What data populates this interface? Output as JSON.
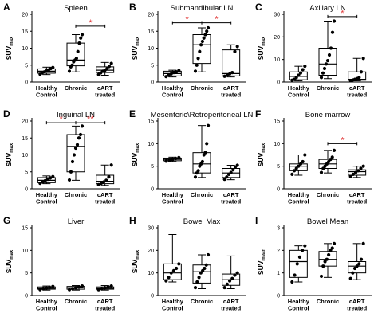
{
  "colors": {
    "significance": "#e23b3b",
    "axis": "#000000",
    "box": "#000000",
    "point_fill": "#000000"
  },
  "chart_data": [
    {
      "type": "box",
      "letter": "A",
      "title": "Spleen",
      "ylabel_main": "SUV",
      "ylabel_sub": "max",
      "ylim": [
        0,
        20
      ],
      "yticks": [
        "0",
        "5",
        "10",
        "15",
        "20"
      ],
      "categories": [
        [
          "Healthy",
          "Control"
        ],
        [
          "Chronic"
        ],
        [
          "cART",
          "treated"
        ]
      ],
      "groups": [
        {
          "min": 2.2,
          "q1": 2.6,
          "median": 3.2,
          "q3": 3.9,
          "max": 4.4,
          "points": [
            2.3,
            2.7,
            3.0,
            3.3,
            3.6,
            4.0,
            4.3
          ]
        },
        {
          "min": 3.0,
          "q1": 4.8,
          "median": 6.5,
          "q3": 11.5,
          "max": 14.0,
          "points": [
            3.2,
            4.5,
            5.0,
            6.0,
            6.5,
            7.0,
            9.0,
            11.5,
            13.0,
            14.0
          ]
        },
        {
          "min": 2.0,
          "q1": 2.8,
          "median": 3.5,
          "q3": 4.5,
          "max": 5.8,
          "points": [
            2.2,
            2.7,
            3.2,
            3.5,
            4.0,
            4.6,
            5.5
          ]
        }
      ],
      "brackets": [
        {
          "from": 1,
          "to": 2,
          "y": 16.5,
          "label": "*"
        }
      ]
    },
    {
      "type": "box",
      "letter": "B",
      "title": "Submandibular LN",
      "ylabel_main": "SUV",
      "ylabel_sub": "max",
      "ylim": [
        0,
        20
      ],
      "yticks": [
        "0",
        "5",
        "10",
        "15",
        "20"
      ],
      "categories": [
        [
          "Healthy",
          "Control"
        ],
        [
          "Chronic"
        ],
        [
          "cART",
          "treated"
        ]
      ],
      "groups": [
        {
          "min": 1.5,
          "q1": 1.8,
          "median": 2.5,
          "q3": 3.2,
          "max": 3.5,
          "points": [
            1.6,
            2.0,
            2.4,
            2.8,
            3.0,
            3.4
          ]
        },
        {
          "min": 3.0,
          "q1": 5.5,
          "median": 11.0,
          "q3": 14.0,
          "max": 16.0,
          "points": [
            3.2,
            5.0,
            7.0,
            9.0,
            11.0,
            12.0,
            13.0,
            14.0,
            15.0,
            16.0
          ]
        },
        {
          "min": 1.5,
          "q1": 1.8,
          "median": 2.5,
          "q3": 9.5,
          "max": 11.0,
          "points": [
            1.7,
            2.0,
            2.4,
            2.8,
            9.0,
            10.5
          ]
        }
      ],
      "brackets": [
        {
          "from": 0,
          "to": 1,
          "y": 17.5,
          "label": "*"
        },
        {
          "from": 1,
          "to": 2,
          "y": 17.5,
          "label": "*"
        }
      ]
    },
    {
      "type": "box",
      "letter": "C",
      "title": "Axillary LN",
      "ylabel_main": "SUV",
      "ylabel_sub": "max",
      "ylim": [
        0,
        30
      ],
      "yticks": [
        "0",
        "10",
        "20",
        "30"
      ],
      "categories": [
        [
          "Healthy",
          "Control"
        ],
        [
          "Chronic"
        ],
        [
          "cART",
          "treated"
        ]
      ],
      "groups": [
        {
          "min": 0.5,
          "q1": 1.0,
          "median": 2.5,
          "q3": 4.5,
          "max": 7.0,
          "points": [
            0.8,
            1.2,
            2.0,
            3.0,
            4.0,
            5.5,
            7.0
          ]
        },
        {
          "min": 1.5,
          "q1": 3.0,
          "median": 8.0,
          "q3": 15.0,
          "max": 27.0,
          "points": [
            2.0,
            4.0,
            6.0,
            8.0,
            9.5,
            12.0,
            15.0,
            22.0,
            27.0
          ]
        },
        {
          "min": 0.5,
          "q1": 0.8,
          "median": 1.2,
          "q3": 4.5,
          "max": 10.5,
          "points": [
            0.6,
            0.9,
            1.2,
            1.5,
            2.0,
            4.5,
            10.5
          ]
        }
      ],
      "brackets": [
        {
          "from": 1,
          "to": 2,
          "y": 29,
          "label": "*"
        }
      ]
    },
    {
      "type": "box",
      "letter": "D",
      "title": "Inguinal LN",
      "ylabel_main": "SUV",
      "ylabel_sub": "max",
      "ylim": [
        0,
        20
      ],
      "yticks": [
        "0",
        "5",
        "10",
        "15",
        "20"
      ],
      "categories": [
        [
          "Healthy",
          "Control"
        ],
        [
          "Chronic"
        ],
        [
          "cART",
          "treated"
        ]
      ],
      "groups": [
        {
          "min": 1.5,
          "q1": 1.8,
          "median": 2.5,
          "q3": 3.3,
          "max": 3.8,
          "points": [
            1.6,
            2.0,
            2.4,
            2.8,
            3.2,
            3.6
          ]
        },
        {
          "min": 2.5,
          "q1": 5.0,
          "median": 12.5,
          "q3": 16.0,
          "max": 18.5,
          "points": [
            2.6,
            5.0,
            8.0,
            10.0,
            12.0,
            13.0,
            15.0,
            16.0,
            18.5
          ]
        },
        {
          "min": 1.0,
          "q1": 1.5,
          "median": 2.2,
          "q3": 4.0,
          "max": 7.0,
          "points": [
            1.2,
            1.6,
            2.0,
            2.5,
            3.5,
            7.0
          ]
        }
      ],
      "brackets": [
        {
          "from": 0,
          "to": 1,
          "y": 19.5,
          "label": "*"
        },
        {
          "from": 1,
          "to": 2,
          "y": 19.5,
          "label": "**"
        }
      ]
    },
    {
      "type": "box",
      "letter": "E",
      "title": "Mesenteric\\Retroperitoneal LN",
      "ylabel_main": "SUV",
      "ylabel_sub": "max",
      "ylim": [
        0,
        15
      ],
      "yticks": [
        "0",
        "5",
        "10",
        "15"
      ],
      "categories": [
        [
          "Healthy",
          "Control"
        ],
        [
          "Chronic"
        ],
        [
          "cART",
          "treated"
        ]
      ],
      "groups": [
        {
          "min": 6.0,
          "q1": 6.2,
          "median": 6.5,
          "q3": 6.8,
          "max": 7.0,
          "points": [
            6.1,
            6.3,
            6.5,
            6.7,
            6.9
          ]
        },
        {
          "min": 2.5,
          "q1": 3.5,
          "median": 5.5,
          "q3": 8.0,
          "max": 14.0,
          "points": [
            2.6,
            3.5,
            4.0,
            5.0,
            5.5,
            6.0,
            7.5,
            8.0,
            10.0,
            14.0
          ]
        },
        {
          "min": 2.0,
          "q1": 2.5,
          "median": 3.5,
          "q3": 4.5,
          "max": 5.2,
          "points": [
            2.1,
            2.6,
            3.2,
            3.6,
            4.2,
            4.8,
            5.2
          ]
        }
      ],
      "brackets": []
    },
    {
      "type": "box",
      "letter": "F",
      "title": "Bone marrow",
      "ylabel_main": "SUV",
      "ylabel_sub": "max",
      "ylim": [
        0,
        15
      ],
      "yticks": [
        "0",
        "5",
        "10",
        "15"
      ],
      "categories": [
        [
          "Healthy",
          "Control"
        ],
        [
          "Chronic"
        ],
        [
          "cART",
          "treated"
        ]
      ],
      "groups": [
        {
          "min": 3.0,
          "q1": 4.0,
          "median": 5.0,
          "q3": 5.5,
          "max": 7.5,
          "points": [
            3.2,
            4.0,
            4.5,
            5.0,
            5.5,
            6.0,
            7.5
          ]
        },
        {
          "min": 3.5,
          "q1": 4.5,
          "median": 5.5,
          "q3": 6.5,
          "max": 8.5,
          "points": [
            3.6,
            4.5,
            5.0,
            5.5,
            6.0,
            6.5,
            7.0,
            8.5
          ]
        },
        {
          "min": 2.5,
          "q1": 3.0,
          "median": 3.8,
          "q3": 4.2,
          "max": 5.0,
          "points": [
            2.7,
            3.2,
            3.6,
            4.0,
            4.5,
            5.0
          ]
        }
      ],
      "brackets": [
        {
          "from": 1,
          "to": 2,
          "y": 10,
          "label": "*"
        }
      ]
    },
    {
      "type": "box",
      "letter": "G",
      "title": "Liver",
      "ylabel_main": "SUV",
      "ylabel_sub": "max",
      "ylim": [
        0,
        15
      ],
      "yticks": [
        "0",
        "5",
        "10",
        "15"
      ],
      "categories": [
        [
          "Healthy",
          "Control"
        ],
        [
          "Chronic"
        ],
        [
          "cART",
          "treated"
        ]
      ],
      "groups": [
        {
          "min": 1.2,
          "q1": 1.4,
          "median": 1.6,
          "q3": 1.9,
          "max": 2.1,
          "points": [
            1.3,
            1.5,
            1.6,
            1.8,
            2.0
          ]
        },
        {
          "min": 1.2,
          "q1": 1.4,
          "median": 1.7,
          "q3": 2.0,
          "max": 2.2,
          "points": [
            1.3,
            1.5,
            1.7,
            1.9,
            2.1
          ]
        },
        {
          "min": 1.2,
          "q1": 1.4,
          "median": 1.6,
          "q3": 1.9,
          "max": 2.2,
          "points": [
            1.3,
            1.5,
            1.7,
            1.9,
            2.1
          ]
        }
      ],
      "brackets": []
    },
    {
      "type": "box",
      "letter": "H",
      "title": "Bowel Max",
      "ylabel_main": "SUV",
      "ylabel_sub": "max",
      "ylim": [
        0,
        30
      ],
      "yticks": [
        "0",
        "10",
        "20",
        "30"
      ],
      "categories": [
        [
          "Healthy",
          "Control"
        ],
        [
          "Chronic"
        ],
        [
          "cART",
          "treated"
        ]
      ],
      "groups": [
        {
          "min": 6.0,
          "q1": 7.0,
          "median": 10.0,
          "q3": 14.0,
          "max": 27.0,
          "points": [
            6.5,
            8.0,
            10.0,
            11.0,
            12.0,
            14.0
          ]
        },
        {
          "min": 3.0,
          "q1": 5.5,
          "median": 10.5,
          "q3": 13.5,
          "max": 18.0,
          "points": [
            3.5,
            6.0,
            8.0,
            10.0,
            11.0,
            12.0,
            13.5,
            18.0
          ]
        },
        {
          "min": 3.0,
          "q1": 4.5,
          "median": 7.0,
          "q3": 9.5,
          "max": 17.5,
          "points": [
            3.5,
            5.0,
            6.5,
            7.5,
            9.0,
            10.0
          ]
        }
      ],
      "brackets": []
    },
    {
      "type": "box",
      "letter": "I",
      "title": "Bowel Mean",
      "ylabel_main": "SUV",
      "ylabel_sub": "mean",
      "ylim": [
        0,
        3
      ],
      "yticks": [
        "0",
        "1",
        "2",
        "3"
      ],
      "categories": [
        [
          "Healthy",
          "Control"
        ],
        [
          "Chronic"
        ],
        [
          "cART",
          "treated"
        ]
      ],
      "groups": [
        {
          "min": 0.6,
          "q1": 0.8,
          "median": 1.5,
          "q3": 2.0,
          "max": 2.2,
          "points": [
            0.6,
            0.9,
            1.4,
            1.7,
            2.0,
            2.2
          ]
        },
        {
          "min": 0.8,
          "q1": 1.3,
          "median": 1.6,
          "q3": 1.95,
          "max": 2.3,
          "points": [
            0.85,
            1.3,
            1.5,
            1.6,
            1.8,
            2.0,
            2.1,
            2.3
          ]
        },
        {
          "min": 0.7,
          "q1": 1.0,
          "median": 1.3,
          "q3": 1.5,
          "max": 2.3,
          "points": [
            0.75,
            1.0,
            1.2,
            1.3,
            1.4,
            1.6,
            2.3
          ]
        }
      ],
      "brackets": []
    }
  ]
}
